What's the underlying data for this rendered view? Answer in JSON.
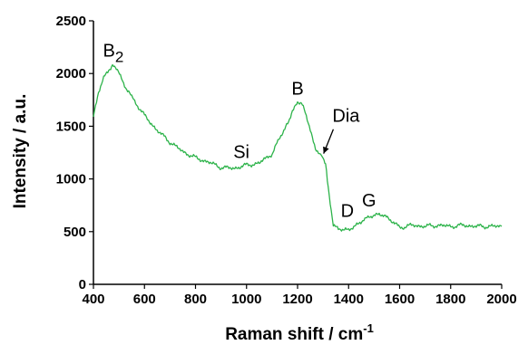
{
  "chart_data": {
    "type": "line",
    "xlabel": "Raman shift / cm",
    "xlabel_sup": "-1",
    "ylabel": "Intensity / a.u.",
    "xlim": [
      400,
      2000
    ],
    "ylim": [
      0,
      2500
    ],
    "xticks": [
      400,
      600,
      800,
      1000,
      1200,
      1400,
      1600,
      1800,
      2000
    ],
    "yticks": [
      0,
      500,
      1000,
      1500,
      2000,
      2500
    ],
    "grid": false,
    "line_color": "#2db34a",
    "series": [
      {
        "x": [
          400,
          420,
          440,
          460,
          475,
          490,
          510,
          530,
          550,
          600,
          650,
          700,
          750,
          800,
          850,
          900,
          950,
          1000,
          1050,
          1100,
          1150,
          1180,
          1200,
          1215,
          1230,
          1250,
          1270,
          1290,
          1300,
          1310,
          1320,
          1340,
          1360,
          1380,
          1400,
          1420,
          1440,
          1460,
          1480,
          1500,
          1520,
          1540,
          1560,
          1580,
          1600,
          1650,
          1700,
          1750,
          1800,
          1850,
          1900,
          1950,
          2000
        ],
        "y": [
          1580,
          1820,
          1960,
          2040,
          2080,
          2060,
          1960,
          1850,
          1780,
          1600,
          1460,
          1350,
          1260,
          1200,
          1160,
          1110,
          1100,
          1130,
          1150,
          1240,
          1480,
          1640,
          1710,
          1730,
          1640,
          1460,
          1300,
          1230,
          1200,
          1150,
          920,
          560,
          520,
          510,
          510,
          540,
          580,
          620,
          650,
          660,
          670,
          650,
          610,
          570,
          540,
          560,
          550,
          560,
          550,
          560,
          550,
          550,
          550
        ]
      }
    ],
    "annotations": [
      {
        "text": "B",
        "sub": "2",
        "x": 478,
        "y": 2160
      },
      {
        "text": "Si",
        "x": 980,
        "y": 1200
      },
      {
        "text": "B",
        "x": 1200,
        "y": 1800
      },
      {
        "text": "Dia",
        "x": 1390,
        "y": 1540,
        "arrow_to": [
          1302,
          1240
        ]
      },
      {
        "text": "D",
        "x": 1395,
        "y": 640
      },
      {
        "text": "G",
        "x": 1480,
        "y": 740
      }
    ]
  }
}
